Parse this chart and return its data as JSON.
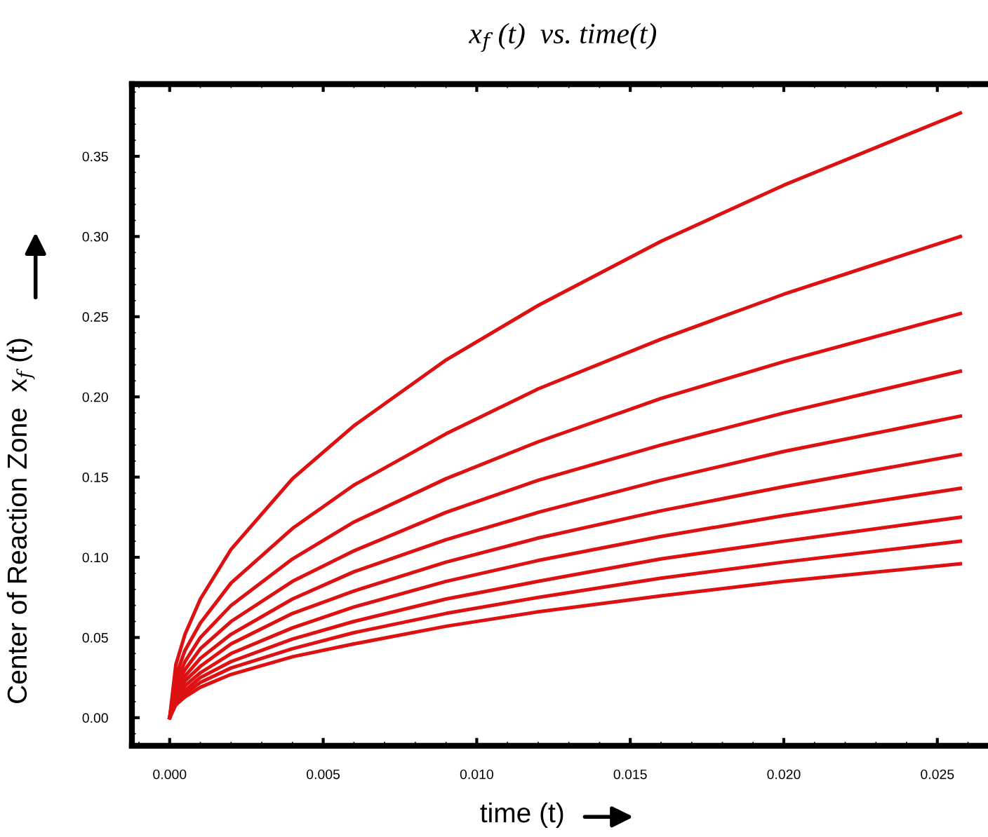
{
  "chart_data": {
    "type": "line",
    "title": "x$_{f}$ (t)  vs. time(t)",
    "xlabel": "time (t)",
    "ylabel": "Center of Reaction Zone  x$_{f}$ (t)",
    "x": [
      0,
      0.0002,
      0.0005,
      0.001,
      0.002,
      0.004,
      0.006,
      0.009,
      0.012,
      0.016,
      0.02,
      0.02575
    ],
    "series": [
      {
        "color": "#dd1111",
        "values": [
          0,
          0.033,
          0.052,
          0.074,
          0.105,
          0.149,
          0.182,
          0.223,
          0.257,
          0.297,
          0.332,
          0.377
        ]
      },
      {
        "color": "#dd1111",
        "values": [
          0,
          0.026,
          0.042,
          0.059,
          0.084,
          0.118,
          0.145,
          0.177,
          0.205,
          0.236,
          0.264,
          0.3
        ]
      },
      {
        "color": "#dd1111",
        "values": [
          0,
          0.022,
          0.035,
          0.05,
          0.07,
          0.099,
          0.122,
          0.149,
          0.172,
          0.199,
          0.222,
          0.252
        ]
      },
      {
        "color": "#dd1111",
        "values": [
          0,
          0.019,
          0.03,
          0.043,
          0.06,
          0.085,
          0.104,
          0.128,
          0.148,
          0.17,
          0.19,
          0.216
        ]
      },
      {
        "color": "#dd1111",
        "values": [
          0,
          0.017,
          0.026,
          0.037,
          0.052,
          0.074,
          0.091,
          0.111,
          0.128,
          0.148,
          0.166,
          0.188
        ]
      },
      {
        "color": "#dd1111",
        "values": [
          0,
          0.014,
          0.023,
          0.032,
          0.046,
          0.065,
          0.079,
          0.097,
          0.112,
          0.129,
          0.144,
          0.164
        ]
      },
      {
        "color": "#dd1111",
        "values": [
          0,
          0.013,
          0.02,
          0.028,
          0.04,
          0.056,
          0.069,
          0.085,
          0.098,
          0.113,
          0.126,
          0.143
        ]
      },
      {
        "color": "#dd1111",
        "values": [
          0,
          0.011,
          0.017,
          0.025,
          0.035,
          0.049,
          0.06,
          0.074,
          0.085,
          0.099,
          0.11,
          0.125
        ]
      },
      {
        "color": "#dd1111",
        "values": [
          0,
          0.01,
          0.015,
          0.022,
          0.031,
          0.043,
          0.053,
          0.065,
          0.075,
          0.087,
          0.097,
          0.11
        ]
      },
      {
        "color": "#dd1111",
        "values": [
          0,
          0.008,
          0.013,
          0.019,
          0.027,
          0.038,
          0.046,
          0.057,
          0.066,
          0.076,
          0.085,
          0.096
        ]
      }
    ],
    "xlim": [
      -0.00123,
      0.02665
    ],
    "ylim": [
      -0.0175,
      0.395
    ],
    "xticks": [
      {
        "value": 0,
        "label": "0.000"
      },
      0.005,
      {
        "value": 0.01,
        "label": "0.010"
      },
      0.015,
      {
        "value": 0.02,
        "label": "0.020"
      },
      0.025
    ],
    "yticks": [
      {
        "value": 0,
        "label": "0.00"
      },
      0.05,
      {
        "value": 0.1,
        "label": "0.10"
      },
      0.15,
      {
        "value": 0.2,
        "label": "0.20"
      },
      0.25,
      {
        "value": 0.3,
        "label": "0.30"
      },
      0.35
    ],
    "grid": false,
    "legend": false,
    "marker": "none",
    "line_style": "solid"
  }
}
